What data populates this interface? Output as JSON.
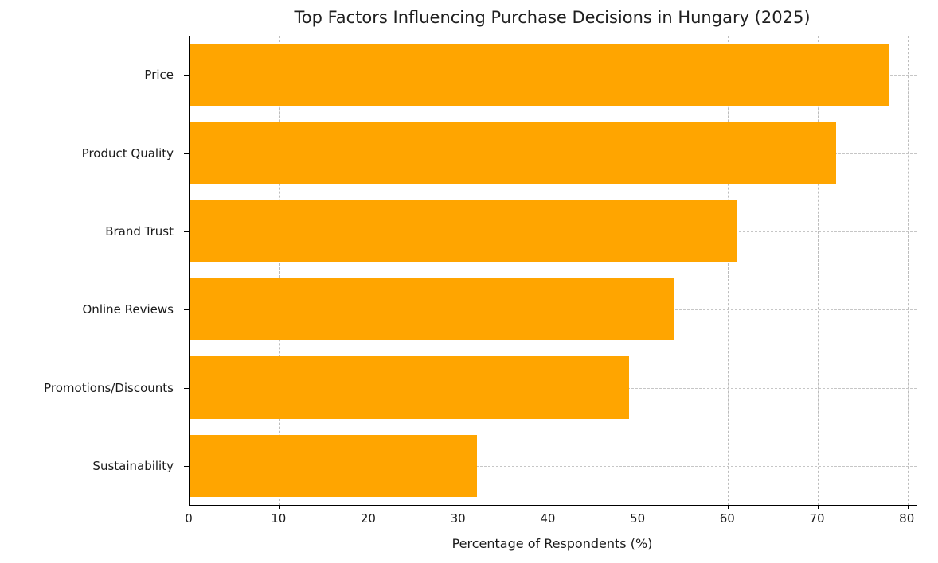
{
  "chart_data": {
    "type": "bar",
    "orientation": "horizontal",
    "title": "Top Factors Influencing Purchase Decisions in Hungary (2025)",
    "categories": [
      "Price",
      "Product Quality",
      "Brand Trust",
      "Online Reviews",
      "Promotions/Discounts",
      "Sustainability"
    ],
    "values": [
      78,
      72,
      61,
      54,
      49,
      32
    ],
    "xlabel": "Percentage of Respondents (%)",
    "ylabel": "",
    "xlim": [
      0,
      81
    ],
    "xticks": [
      0,
      10,
      20,
      30,
      40,
      50,
      60,
      70,
      80
    ],
    "bar_color": "#FFA500",
    "grid": true,
    "grid_style": "dashed",
    "grid_color": "#bcbcbc",
    "legend_position": "none",
    "background_color": "#ffffff"
  }
}
